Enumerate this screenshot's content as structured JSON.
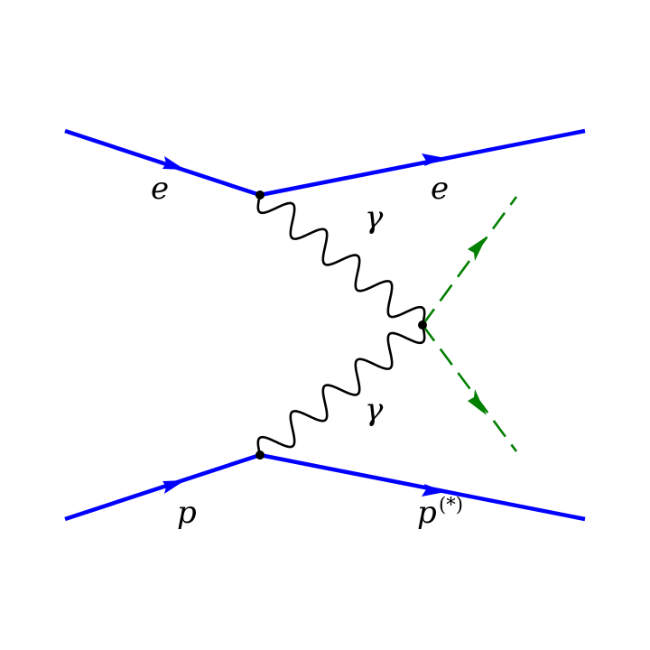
{
  "diagram": {
    "labels": {
      "electron_in": "e",
      "electron_out": "e",
      "photon_upper": "γ",
      "photon_lower": "γ",
      "proton_in": "p",
      "proton_out": "p",
      "proton_out_superscript": "(*)"
    },
    "colors": {
      "fermion": "#0000ff",
      "photon": "#000000",
      "scalar": "#008000",
      "vertex": "#000000",
      "text": "#000000"
    }
  }
}
